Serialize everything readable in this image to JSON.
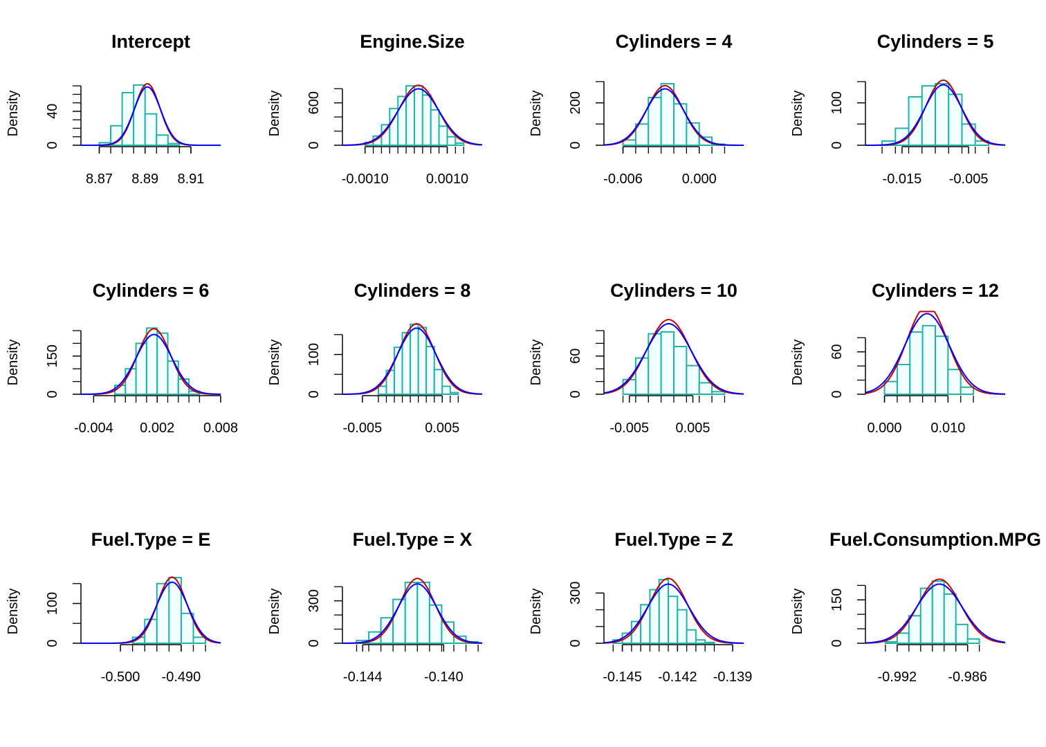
{
  "chart_data": [
    {
      "type": "histogram-density",
      "title": "Intercept",
      "ylabel": "Density",
      "xlim": [
        8.862,
        8.923
      ],
      "ylim": [
        0,
        75
      ],
      "xticks": [
        8.87,
        8.89,
        8.91
      ],
      "xtick_labels": [
        "8.87",
        "8.89",
        "8.91"
      ],
      "yticks": [
        0,
        40
      ],
      "ytick_labels": [
        "0",
        "40"
      ],
      "yminor": [
        10,
        20,
        30,
        50,
        60,
        70
      ],
      "bins": [
        8.87,
        8.875,
        8.88,
        8.885,
        8.89,
        8.895,
        8.9,
        8.905,
        8.91
      ],
      "heights": [
        3,
        23,
        62,
        71,
        37,
        12,
        2,
        0
      ],
      "mean": 8.891,
      "sd": 0.0055,
      "sd_alt": 0.0058
    },
    {
      "type": "histogram-density",
      "title": "Engine.Size",
      "ylabel": "Density",
      "xlim": [
        -0.00155,
        0.00185
      ],
      "ylim": [
        0,
        900
      ],
      "xticks": [
        -0.001,
        0.001
      ],
      "xtick_labels": [
        "-0.0010",
        "0.0010"
      ],
      "yticks": [
        0,
        600
      ],
      "ytick_labels": [
        "0",
        "600"
      ],
      "yminor": [
        200,
        400,
        800
      ],
      "bins": [
        -0.001,
        -0.0008,
        -0.0006,
        -0.0004,
        -0.0002,
        0,
        0.0002,
        0.0004,
        0.0006,
        0.0008,
        0.001,
        0.0012,
        0.0014
      ],
      "heights": [
        40,
        130,
        290,
        520,
        690,
        840,
        840,
        710,
        500,
        270,
        120,
        30
      ],
      "mean": 0.0003,
      "sd": 0.00047,
      "sd_alt": 0.0005
    },
    {
      "type": "histogram-density",
      "title": "Cylinders = 4",
      "ylabel": "Density",
      "xlim": [
        -0.0075,
        0.0035
      ],
      "ylim": [
        0,
        300
      ],
      "xticks": [
        -0.006,
        0
      ],
      "xtick_labels": [
        "-0.006",
        "0.000"
      ],
      "yticks": [
        0,
        200
      ],
      "ytick_labels": [
        "0",
        "200"
      ],
      "yminor": [
        100,
        300
      ],
      "bins": [
        -0.006,
        -0.005,
        -0.004,
        -0.003,
        -0.002,
        -0.001,
        0,
        0.001,
        0.002
      ],
      "heights": [
        25,
        100,
        225,
        290,
        195,
        105,
        38,
        5
      ],
      "mean": -0.0027,
      "sd": 0.00142,
      "sd_alt": 0.0015
    },
    {
      "type": "histogram-density",
      "title": "Cylinders = 5",
      "ylabel": "Density",
      "xlim": [
        -0.0205,
        0.0005
      ],
      "ylim": [
        0,
        150
      ],
      "xticks": [
        -0.015,
        -0.005
      ],
      "xtick_labels": [
        "-0.015",
        "-0.005"
      ],
      "yticks": [
        0,
        100
      ],
      "ytick_labels": [
        "0",
        "100"
      ],
      "yminor": [
        50,
        150
      ],
      "bins": [
        -0.018,
        -0.016,
        -0.014,
        -0.012,
        -0.01,
        -0.008,
        -0.006,
        -0.004,
        -0.002
      ],
      "heights": [
        10,
        40,
        114,
        140,
        145,
        120,
        50,
        10
      ],
      "mean": -0.0088,
      "sd": 0.0026,
      "sd_alt": 0.0028
    },
    {
      "type": "histogram-density",
      "title": "Cylinders = 6",
      "ylabel": "Density",
      "xlim": [
        -0.0052,
        0.008
      ],
      "ylim": [
        0,
        250
      ],
      "xticks": [
        -0.004,
        0.002,
        0.008
      ],
      "xtick_labels": [
        "-0.004",
        "0.002",
        "0.008"
      ],
      "yticks": [
        0,
        150
      ],
      "ytick_labels": [
        "0",
        "150"
      ],
      "yminor": [
        50,
        100,
        200,
        250
      ],
      "bins": [
        -0.002,
        -0.001,
        0,
        0.001,
        0.002,
        0.003,
        0.004,
        0.005,
        0.006
      ],
      "heights": [
        35,
        100,
        200,
        260,
        240,
        130,
        60,
        12
      ],
      "mean": 0.0017,
      "sd": 0.00155,
      "sd_alt": 0.0017
    },
    {
      "type": "histogram-density",
      "title": "Cylinders = 8",
      "ylabel": "Density",
      "xlim": [
        -0.0075,
        0.01
      ],
      "ylim": [
        0,
        160
      ],
      "xticks": [
        -0.005,
        0.005
      ],
      "xtick_labels": [
        "-0.005",
        "0.005"
      ],
      "yticks": [
        0,
        100
      ],
      "ytick_labels": [
        "0",
        "100"
      ],
      "yminor": [
        50,
        150
      ],
      "bins": [
        -0.003,
        -0.002,
        -0.001,
        0,
        0.001,
        0.002,
        0.003,
        0.004,
        0.005,
        0.006,
        0.007
      ],
      "heights": [
        20,
        60,
        118,
        155,
        176,
        168,
        120,
        62,
        20,
        4
      ],
      "mean": 0.0018,
      "sd": 0.00225,
      "sd_alt": 0.0024
    },
    {
      "type": "histogram-density",
      "title": "Cylinders = 10",
      "ylabel": "Density",
      "xlim": [
        -0.009,
        0.013
      ],
      "ylim": [
        0,
        100
      ],
      "xticks": [
        -0.005,
        0.005
      ],
      "xtick_labels": [
        "-0.005",
        "0.005"
      ],
      "yticks": [
        0,
        60
      ],
      "ytick_labels": [
        "0",
        "60"
      ],
      "yminor": [
        20,
        40,
        80,
        100
      ],
      "bins": [
        -0.006,
        -0.004,
        -0.002,
        0,
        0.002,
        0.004,
        0.006,
        0.008,
        0.01
      ],
      "heights": [
        23,
        57,
        95,
        98,
        75,
        45,
        18,
        4
      ],
      "mean": 0.0012,
      "sd": 0.0034,
      "sd_alt": 0.0036
    },
    {
      "type": "histogram-density",
      "title": "Cylinders = 12",
      "ylabel": "Density",
      "xlim": [
        -0.003,
        0.019
      ],
      "ylim": [
        0,
        90
      ],
      "xticks": [
        0,
        0.01
      ],
      "xtick_labels": [
        "0.000",
        "0.010"
      ],
      "yticks": [
        0,
        60
      ],
      "ytick_labels": [
        "0",
        "60"
      ],
      "yminor": [
        20,
        40,
        80
      ],
      "bins": [
        0,
        0.002,
        0.004,
        0.006,
        0.008,
        0.01,
        0.012,
        0.014
      ],
      "heights": [
        18,
        42,
        88,
        97,
        82,
        35,
        10
      ],
      "mean": 0.0067,
      "sd": 0.0032,
      "sd_alt": 0.0035
    },
    {
      "type": "histogram-density",
      "title": "Fuel.Type = E",
      "ylabel": "Density",
      "xlim": [
        -0.5065,
        -0.4835
      ],
      "ylim": [
        0,
        160
      ],
      "xticks": [
        -0.5,
        -0.49
      ],
      "xtick_labels": [
        "-0.500",
        "-0.490"
      ],
      "yticks": [
        0,
        100
      ],
      "ytick_labels": [
        "0",
        "100"
      ],
      "yminor": [
        50,
        150
      ],
      "bins": [
        -0.498,
        -0.496,
        -0.494,
        -0.492,
        -0.49,
        -0.488,
        -0.486
      ],
      "heights": [
        15,
        60,
        150,
        165,
        75,
        15
      ],
      "mean": -0.4915,
      "sd": 0.0024,
      "sd_alt": 0.0026
    },
    {
      "type": "histogram-density",
      "title": "Fuel.Type = X",
      "ylabel": "Density",
      "xlim": [
        -0.145,
        -0.1381
      ],
      "ylim": [
        0,
        450
      ],
      "xticks": [
        -0.144,
        -0.14
      ],
      "xtick_labels": [
        "-0.144",
        "-0.140"
      ],
      "yticks": [
        0,
        300
      ],
      "ytick_labels": [
        "0",
        "300"
      ],
      "yminor": [
        100,
        200,
        400
      ],
      "bins": [
        -0.1443,
        -0.1437,
        -0.1431,
        -0.1425,
        -0.1419,
        -0.1413,
        -0.1407,
        -0.1401,
        -0.1395,
        -0.1389,
        -0.1383
      ],
      "heights": [
        20,
        80,
        180,
        310,
        430,
        430,
        270,
        150,
        50,
        10
      ],
      "mean": -0.1413,
      "sd": 0.00087,
      "sd_alt": 0.00095
    },
    {
      "type": "histogram-density",
      "title": "Fuel.Type = Z",
      "ylabel": "Density",
      "xlim": [
        -0.146,
        -0.1384
      ],
      "ylim": [
        0,
        380
      ],
      "xticks": [
        -0.145,
        -0.142,
        -0.139
      ],
      "xtick_labels": [
        "-0.145",
        "-0.142",
        "-0.139"
      ],
      "yticks": [
        0,
        300
      ],
      "ytick_labels": [
        "0",
        "300"
      ],
      "yminor": [
        100,
        200
      ],
      "bins": [
        -0.1455,
        -0.145,
        -0.1445,
        -0.144,
        -0.1435,
        -0.143,
        -0.1425,
        -0.142,
        -0.1415,
        -0.141,
        -0.1405,
        -0.14
      ],
      "heights": [
        20,
        60,
        130,
        230,
        320,
        380,
        280,
        200,
        80,
        20,
        5
      ],
      "mean": -0.1425,
      "sd": 0.00103,
      "sd_alt": 0.00113
    },
    {
      "type": "histogram-density",
      "title": "Fuel.Consumption.MPG",
      "ylabel": "Density",
      "xlim": [
        -0.9947,
        -0.9828
      ],
      "ylim": [
        0,
        220
      ],
      "xticks": [
        -0.992,
        -0.986
      ],
      "xtick_labels": [
        "-0.992",
        "-0.986"
      ],
      "yticks": [
        0,
        150
      ],
      "ytick_labels": [
        "0",
        "150"
      ],
      "yminor": [
        50,
        100,
        200
      ],
      "bins": [
        -0.993,
        -0.992,
        -0.991,
        -0.99,
        -0.989,
        -0.988,
        -0.987,
        -0.986,
        -0.985
      ],
      "heights": [
        5,
        35,
        95,
        190,
        215,
        170,
        65,
        15
      ],
      "mean": -0.9884,
      "sd": 0.0018,
      "sd_alt": 0.00195
    }
  ],
  "colors": {
    "fill": "#f0ffff",
    "border": "#20b2aa",
    "curve_a": "#c00000",
    "curve_b": "#0000ff",
    "axis": "#000000"
  }
}
